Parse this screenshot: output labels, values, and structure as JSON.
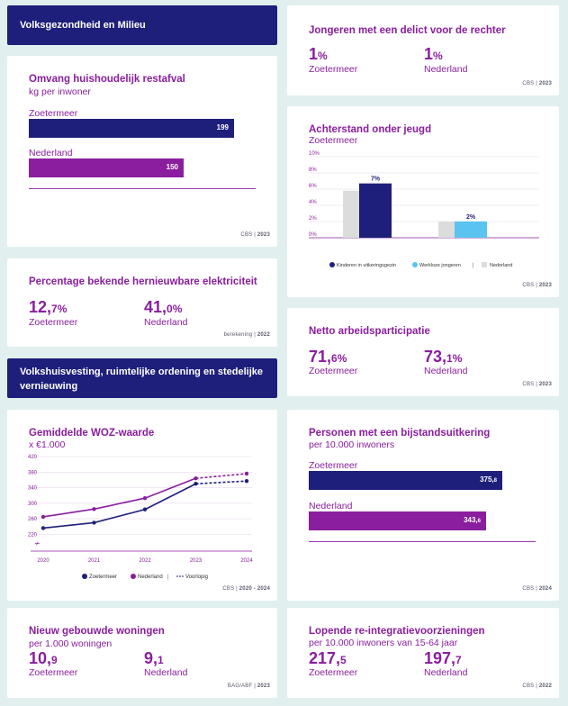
{
  "header1": "Volksgezondheid en Milieu",
  "header2": "Volkshuisvesting, ruimtelijke ordening en stedelijke vernieuwing",
  "afval": {
    "title": "Omvang huishoudelijk restafval",
    "sub": "kg per inwoner",
    "rows": [
      {
        "label": "Zoetermeer",
        "value": "199",
        "num": 199,
        "color": "#1e1f7a"
      },
      {
        "label": "Nederland",
        "value": "150",
        "num": 150,
        "color": "#8a1e9e"
      }
    ],
    "source": "CBS",
    "year": "2023"
  },
  "elektriciteit": {
    "title": "Percentage bekende hernieuwbare elektriciteit",
    "a_int": "12,",
    "a_dec": "7%",
    "a_label": "Zoetermeer",
    "b_int": "41,",
    "b_dec": "0%",
    "b_label": "Nederland",
    "source": "berekening",
    "year": "2022"
  },
  "woz": {
    "title": "Gemiddelde WOZ-waarde",
    "sub": "x €1.000",
    "source": "CBS",
    "year": "2020 - 2024",
    "legend": {
      "a": "Zoetermeer",
      "b": "Nederland",
      "c": "Voorlopig"
    }
  },
  "woningen": {
    "title": "Nieuw gebouwde woningen",
    "sub": "per 1.000 woningen",
    "a_int": "10,",
    "a_dec": "9",
    "a_label": "Zoetermeer",
    "b_int": "9,",
    "b_dec": "1",
    "b_label": "Nederland",
    "source": "BAG/ABF",
    "year": "2023"
  },
  "delict": {
    "title": "Jongeren met een delict voor de rechter",
    "a_int": "1",
    "a_dec": "%",
    "a_label": "Zoetermeer",
    "b_int": "1",
    "b_dec": "%",
    "b_label": "Nederland",
    "source": "CBS",
    "year": "2023"
  },
  "achterstand": {
    "title": "Achterstand onder jeugd",
    "sub": "Zoetermeer",
    "legend": {
      "a": "Kinderen in uitkeringsgezin",
      "b": "Werkloze jongeren",
      "c": "Nederland"
    },
    "source": "CBS",
    "year": "2023"
  },
  "arbeid": {
    "title": "Netto arbeidsparticipatie",
    "a_int": "71,",
    "a_dec": "6%",
    "a_label": "Zoetermeer",
    "b_int": "73,",
    "b_dec": "1%",
    "b_label": "Nederland",
    "source": "CBS",
    "year": "2023"
  },
  "bijstand": {
    "title": "Personen met een bijstandsuitkering",
    "sub": "per 10.000 inwoners",
    "rows": [
      {
        "label": "Zoetermeer",
        "value": "375,",
        "dec": "8",
        "num": 375.8,
        "color": "#1e1f7a"
      },
      {
        "label": "Nederland",
        "value": "343,",
        "dec": "6",
        "num": 343.6,
        "color": "#8a1e9e"
      }
    ],
    "source": "CBS",
    "year": "2024"
  },
  "reintegratie": {
    "title": "Lopende re-integratievoorzieningen",
    "sub": "per 10.000 inwoners van 15-64 jaar",
    "a_int": "217,",
    "a_dec": "5",
    "a_label": "Zoetermeer",
    "b_int": "197,",
    "b_dec": "7",
    "b_label": "Nederland",
    "source": "CBS",
    "year": "2022"
  },
  "chart_data": [
    {
      "type": "line",
      "title": "Gemiddelde WOZ-waarde",
      "ylabel": "x €1.000",
      "x": [
        "2020",
        "2021",
        "2022",
        "2023",
        "2024"
      ],
      "yticks": [
        "220",
        "260",
        "300",
        "340",
        "380",
        "420"
      ],
      "ylim": [
        200,
        420
      ],
      "series": [
        {
          "name": "Zoetermeer",
          "color": "#1e1f7a",
          "values": [
            236,
            250,
            284,
            350,
            357
          ],
          "provisional_from": "2023"
        },
        {
          "name": "Nederland",
          "color": "#8a1e9e",
          "values": [
            265,
            285,
            313,
            364,
            376
          ],
          "provisional_from": "2023"
        }
      ],
      "legend": [
        "Zoetermeer",
        "Nederland",
        "Voorlopig"
      ]
    },
    {
      "type": "bar",
      "title": "Achterstand onder jeugd",
      "subtitle": "Zoetermeer",
      "categories": [
        "Kinderen in uitkeringsgezin",
        "Werkloze jongeren"
      ],
      "yticks": [
        "0%",
        "2%",
        "4%",
        "6%",
        "8%",
        "10%"
      ],
      "ylim": [
        0,
        10
      ],
      "series": [
        {
          "name": "Nederland",
          "color": "#dcdcdc",
          "values": [
            5.8,
            2.0
          ]
        },
        {
          "name": "Zoetermeer",
          "colors": [
            "#1e1f7a",
            "#5bc3f0"
          ],
          "values": [
            6.7,
            2.0
          ],
          "labels": [
            "7%",
            "2%"
          ]
        }
      ]
    }
  ]
}
